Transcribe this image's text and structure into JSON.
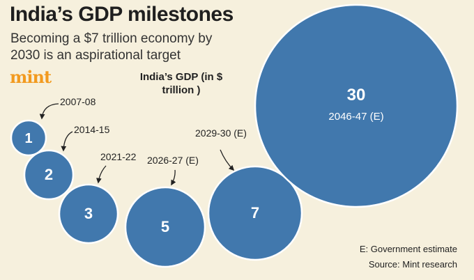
{
  "colors": {
    "bubble": "#4178ad",
    "background": "#f6f0dd",
    "accent": "#f29a1f"
  },
  "header": {
    "title": "India’s GDP milestones",
    "subtitle": "Becoming a $7 trillion economy by 2030 is an aspirational target",
    "logo": "mint"
  },
  "chart_data": {
    "type": "bubble",
    "title": "India’s GDP (in $ trillion )",
    "value_unit": "$ trillion",
    "points": [
      {
        "year": "2007-08",
        "value": 1
      },
      {
        "year": "2014-15",
        "value": 2
      },
      {
        "year": "2021-22",
        "value": 3
      },
      {
        "year": "2026-27 (E)",
        "value": 5
      },
      {
        "year": "2029-30 (E)",
        "value": 7
      },
      {
        "year": "2046-47 (E)",
        "value": 30
      }
    ]
  },
  "footer": {
    "estimate_note": "E: Government estimate",
    "source": "Source: Mint research"
  }
}
